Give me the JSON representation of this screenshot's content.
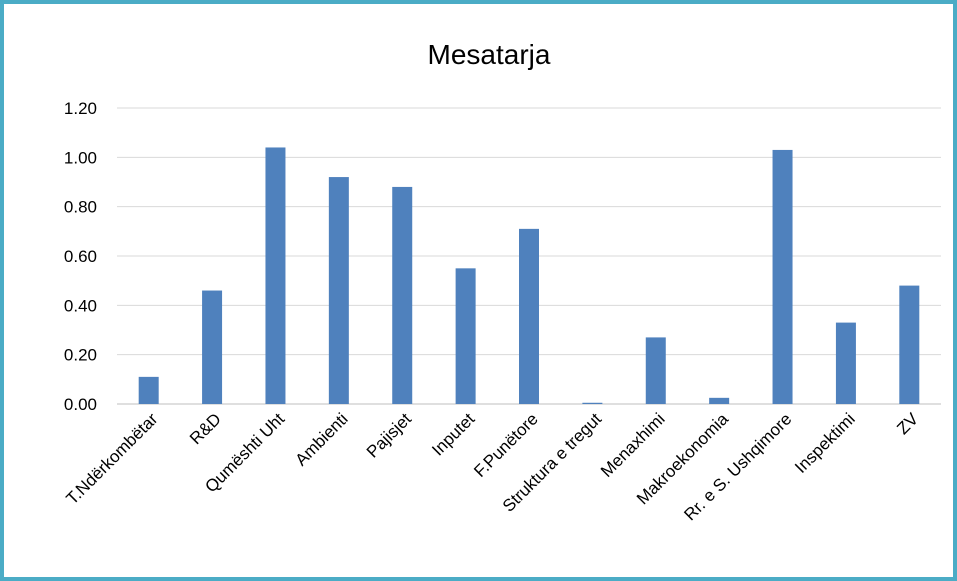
{
  "chart_data": {
    "type": "bar",
    "title": "Mesatarja",
    "xlabel": "",
    "ylabel": "",
    "categories": [
      "T.Ndërkombëtar",
      "R&D",
      "Qumështi Uht",
      "Ambienti",
      "Pajisjet",
      "Inputet",
      "F.Punëtore",
      "Struktura e tregut",
      "Menaxhimi",
      "Makroekonomia",
      "Rr. e S. Ushqimore",
      "Inspektimi",
      "ZV"
    ],
    "values": [
      0.11,
      0.46,
      1.04,
      0.92,
      0.88,
      0.55,
      0.71,
      0.005,
      0.27,
      0.025,
      1.03,
      0.33,
      0.48
    ],
    "yticks": [
      "0.00",
      "0.20",
      "0.40",
      "0.60",
      "0.80",
      "1.00",
      "1.20"
    ],
    "ylim": [
      0,
      1.2
    ],
    "grid": true,
    "legend": "none",
    "colors": {
      "bar": "#4f81bd",
      "grid": "#d9d9d9",
      "border": "#4bacc6"
    }
  }
}
